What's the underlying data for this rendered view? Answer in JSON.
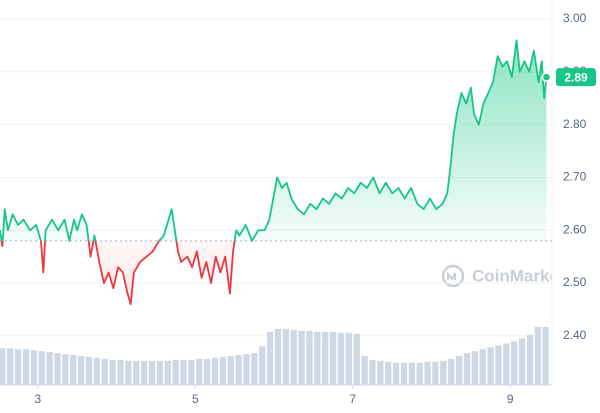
{
  "chart_data": {
    "type": "line",
    "x": [
      2.52,
      2.55,
      2.58,
      2.62,
      2.68,
      2.75,
      2.82,
      2.9,
      2.98,
      3.04,
      3.07,
      3.1,
      3.18,
      3.26,
      3.34,
      3.4,
      3.46,
      3.5,
      3.56,
      3.62,
      3.67,
      3.72,
      3.78,
      3.84,
      3.9,
      3.96,
      4.02,
      4.08,
      4.14,
      4.18,
      4.22,
      4.3,
      4.38,
      4.46,
      4.54,
      4.6,
      4.66,
      4.7,
      4.74,
      4.78,
      4.82,
      4.9,
      4.96,
      5.02,
      5.08,
      5.14,
      5.2,
      5.26,
      5.32,
      5.38,
      5.44,
      5.48,
      5.52,
      5.56,
      5.64,
      5.72,
      5.8,
      5.88,
      5.94,
      5.99,
      6.04,
      6.1,
      6.16,
      6.22,
      6.3,
      6.38,
      6.46,
      6.54,
      6.62,
      6.7,
      6.78,
      6.86,
      6.94,
      7.02,
      7.1,
      7.18,
      7.26,
      7.34,
      7.42,
      7.5,
      7.58,
      7.66,
      7.74,
      7.82,
      7.9,
      7.98,
      8.06,
      8.14,
      8.2,
      8.24,
      8.28,
      8.32,
      8.38,
      8.44,
      8.5,
      8.54,
      8.6,
      8.66,
      8.72,
      8.78,
      8.84,
      8.9,
      8.96,
      9.02,
      9.08,
      9.12,
      9.18,
      9.24,
      9.3,
      9.36,
      9.4,
      9.43,
      9.46
    ],
    "values": [
      2.6,
      2.57,
      2.64,
      2.6,
      2.63,
      2.61,
      2.62,
      2.6,
      2.61,
      2.58,
      2.52,
      2.6,
      2.62,
      2.6,
      2.62,
      2.58,
      2.62,
      2.6,
      2.63,
      2.61,
      2.55,
      2.59,
      2.54,
      2.5,
      2.52,
      2.49,
      2.53,
      2.52,
      2.48,
      2.46,
      2.52,
      2.54,
      2.55,
      2.56,
      2.58,
      2.59,
      2.62,
      2.64,
      2.6,
      2.56,
      2.54,
      2.55,
      2.53,
      2.56,
      2.51,
      2.54,
      2.5,
      2.55,
      2.52,
      2.55,
      2.48,
      2.56,
      2.6,
      2.59,
      2.61,
      2.58,
      2.6,
      2.6,
      2.62,
      2.66,
      2.7,
      2.68,
      2.69,
      2.66,
      2.64,
      2.63,
      2.65,
      2.64,
      2.66,
      2.65,
      2.67,
      2.66,
      2.68,
      2.67,
      2.69,
      2.68,
      2.7,
      2.67,
      2.69,
      2.67,
      2.68,
      2.66,
      2.68,
      2.65,
      2.64,
      2.66,
      2.64,
      2.65,
      2.67,
      2.72,
      2.78,
      2.82,
      2.86,
      2.84,
      2.87,
      2.82,
      2.8,
      2.84,
      2.86,
      2.88,
      2.93,
      2.91,
      2.92,
      2.89,
      2.96,
      2.9,
      2.92,
      2.9,
      2.94,
      2.88,
      2.92,
      2.85,
      2.89
    ],
    "baseline": 2.58,
    "current_price": 2.89,
    "up_color": "#16c784",
    "down_color": "#ea3943",
    "volume_color": "#cfd6e4",
    "volume": {
      "x": [
        2.55,
        2.65,
        2.75,
        2.85,
        2.95,
        3.05,
        3.15,
        3.25,
        3.35,
        3.45,
        3.55,
        3.65,
        3.75,
        3.85,
        3.95,
        4.05,
        4.15,
        4.25,
        4.35,
        4.45,
        4.55,
        4.65,
        4.75,
        4.85,
        4.95,
        5.05,
        5.15,
        5.25,
        5.35,
        5.45,
        5.55,
        5.65,
        5.75,
        5.85,
        5.95,
        6.05,
        6.15,
        6.25,
        6.35,
        6.45,
        6.55,
        6.65,
        6.75,
        6.85,
        6.95,
        7.05,
        7.15,
        7.25,
        7.35,
        7.45,
        7.55,
        7.65,
        7.75,
        7.85,
        7.95,
        8.05,
        8.15,
        8.25,
        8.35,
        8.45,
        8.55,
        8.65,
        8.75,
        8.85,
        8.95,
        9.05,
        9.15,
        9.25,
        9.35,
        9.45
      ],
      "values": [
        38,
        38,
        37,
        37,
        36,
        35,
        34,
        33,
        32,
        31,
        30,
        29,
        28,
        27,
        26,
        26,
        25,
        25,
        25,
        25,
        25,
        25,
        26,
        26,
        26,
        27,
        27,
        28,
        29,
        30,
        31,
        32,
        33,
        40,
        55,
        58,
        58,
        57,
        56,
        56,
        55,
        55,
        55,
        54,
        54,
        53,
        30,
        26,
        25,
        24,
        23,
        23,
        23,
        23,
        24,
        24,
        25,
        27,
        30,
        33,
        35,
        37,
        39,
        41,
        43,
        45,
        48,
        52,
        60,
        60
      ]
    },
    "xlim": [
      2.52,
      9.53
    ],
    "ylim": [
      2.307,
      3.036
    ],
    "xticks": [
      3,
      5,
      7,
      9
    ],
    "yticks": [
      {
        "value": 2.4,
        "label": "2.40"
      },
      {
        "value": 2.5,
        "label": "2.50"
      },
      {
        "value": 2.6,
        "label": "2.60"
      },
      {
        "value": 2.7,
        "label": "2.70"
      },
      {
        "value": 2.8,
        "label": "2.80"
      },
      {
        "value": 2.9,
        "label": "2.90"
      },
      {
        "value": 3.0,
        "label": "3.00"
      }
    ],
    "grid": true,
    "watermark": "CoinMarketCap"
  }
}
